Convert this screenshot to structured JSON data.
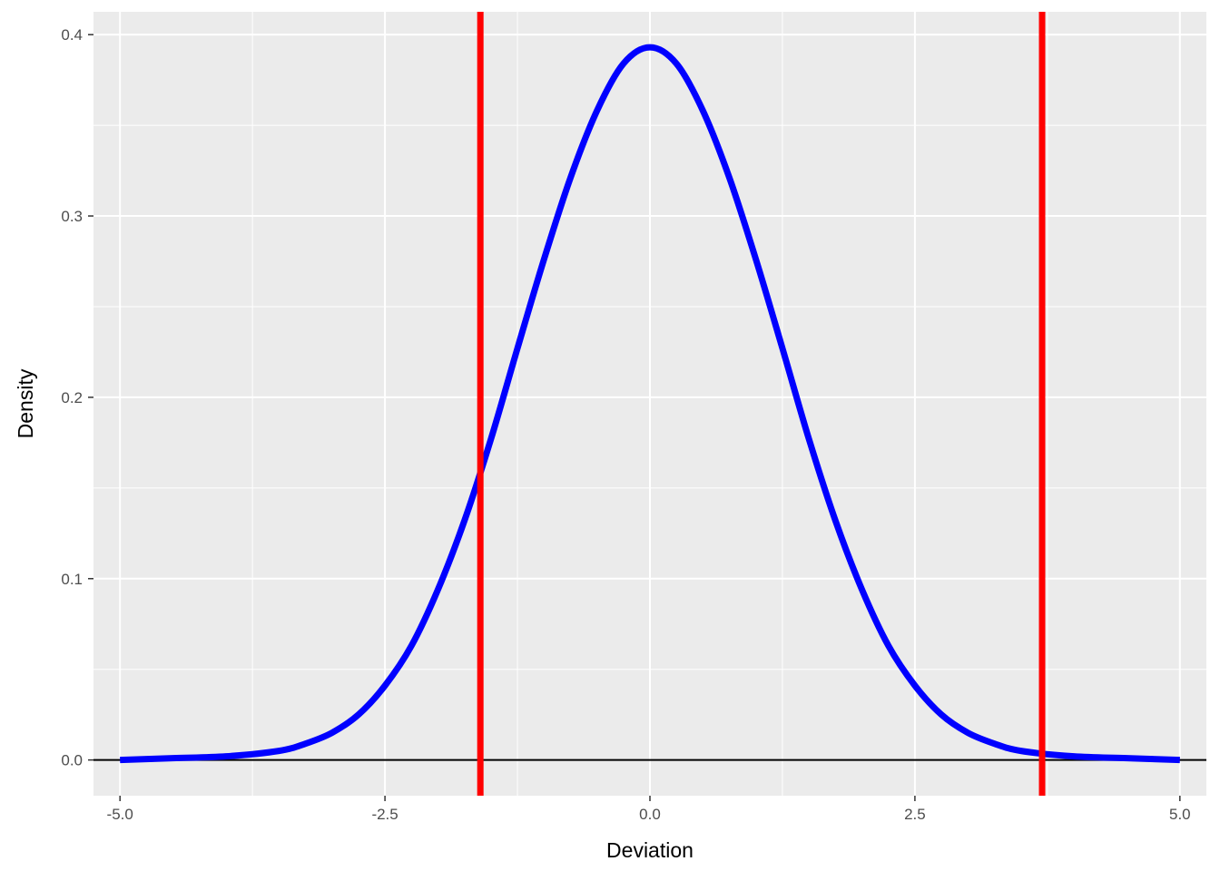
{
  "chart_data": {
    "type": "line",
    "title": "",
    "xlabel": "Deviation",
    "ylabel": "Density",
    "xlim": [
      -5.25,
      5.25
    ],
    "ylim": [
      -0.0197,
      0.4126
    ],
    "grid": true,
    "legend": "none",
    "x_ticks": [
      -5.0,
      -2.5,
      0.0,
      2.5,
      5.0
    ],
    "x_tick_labels": [
      "-5.0",
      "-2.5",
      "0.0",
      "2.5",
      "5.0"
    ],
    "y_ticks": [
      0.0,
      0.1,
      0.2,
      0.3,
      0.4
    ],
    "y_tick_labels": [
      "0.0",
      "0.1",
      "0.2",
      "0.3",
      "0.4"
    ],
    "series": [
      {
        "color": "#0000ff",
        "x": [
          -5.0,
          -4.5,
          -4.0,
          -3.5,
          -3.25,
          -3.0,
          -2.75,
          -2.5,
          -2.25,
          -2.0,
          -1.75,
          -1.5,
          -1.25,
          -1.0,
          -0.75,
          -0.5,
          -0.25,
          0.0,
          0.25,
          0.5,
          0.75,
          1.0,
          1.25,
          1.5,
          1.75,
          2.0,
          2.25,
          2.5,
          2.75,
          3.0,
          3.25,
          3.5,
          4.0,
          4.5,
          5.0
        ],
        "y": [
          0.0,
          0.001,
          0.002,
          0.005,
          0.009,
          0.015,
          0.025,
          0.041,
          0.063,
          0.094,
          0.132,
          0.177,
          0.227,
          0.276,
          0.321,
          0.358,
          0.384,
          0.393,
          0.384,
          0.358,
          0.321,
          0.276,
          0.227,
          0.177,
          0.132,
          0.094,
          0.063,
          0.041,
          0.025,
          0.015,
          0.009,
          0.005,
          0.002,
          0.001,
          0.0
        ]
      }
    ],
    "vlines": [
      {
        "x": -1.6,
        "color": "#ff0000"
      },
      {
        "x": 3.7,
        "color": "#ff0000"
      }
    ],
    "hlines": [
      {
        "y": 0.0,
        "color": "#000000"
      }
    ],
    "panel_color": "#ebebeb",
    "grid_color": "#ffffff"
  }
}
